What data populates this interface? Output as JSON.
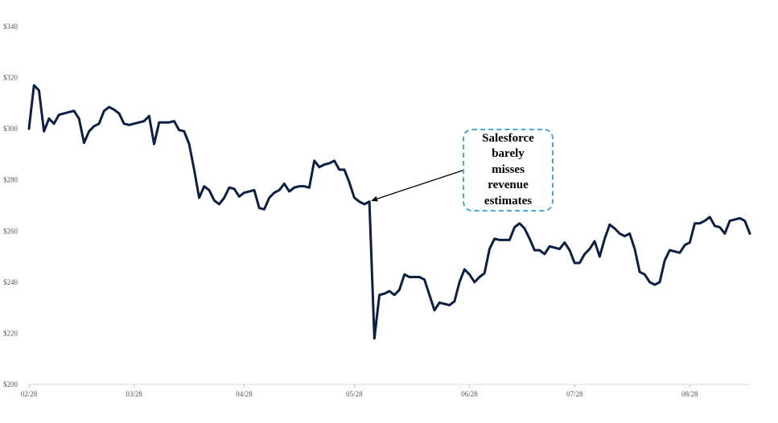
{
  "chart_data": {
    "type": "line",
    "title": "",
    "xlabel": "",
    "ylabel": "",
    "ylim": [
      200,
      340
    ],
    "y_ticks": [
      {
        "value": 200,
        "label": "$200"
      },
      {
        "value": 220,
        "label": "$220"
      },
      {
        "value": 240,
        "label": "$240"
      },
      {
        "value": 260,
        "label": "$260"
      },
      {
        "value": 280,
        "label": "$280"
      },
      {
        "value": 300,
        "label": "$300"
      },
      {
        "value": 320,
        "label": "$320"
      },
      {
        "value": 340,
        "label": "$340"
      }
    ],
    "x_ticks": [
      {
        "index": 0,
        "label": "02/28"
      },
      {
        "index": 21,
        "label": "03/28"
      },
      {
        "index": 43,
        "label": "04/28"
      },
      {
        "index": 65,
        "label": "05/28"
      },
      {
        "index": 88,
        "label": "06/28"
      },
      {
        "index": 109,
        "label": "07/28"
      },
      {
        "index": 132,
        "label": "08/28"
      }
    ],
    "grid": false,
    "line_color": "#0c1f44",
    "series": [
      {
        "values": [
          300,
          317,
          315,
          299,
          304,
          302,
          305.5,
          306,
          306.5,
          307,
          304,
          294.5,
          299,
          301,
          302,
          307,
          308.5,
          307.5,
          306,
          302,
          301.5,
          302,
          302.5,
          303,
          305,
          294,
          302.5,
          302.5,
          302.5,
          303,
          299.5,
          299,
          294,
          284,
          273,
          277.5,
          276,
          272,
          270.5,
          273,
          277,
          276.5,
          273.5,
          275,
          275.5,
          276,
          269,
          268.5,
          273,
          275,
          276,
          278.5,
          275.5,
          277,
          277.5,
          277.5,
          277,
          287.5,
          285,
          286,
          286.5,
          287.5,
          284,
          284,
          279,
          273,
          271.5,
          270.5,
          271.5,
          218,
          235,
          235.5,
          236.5,
          235,
          237,
          243,
          242,
          242,
          242,
          241,
          235,
          229,
          232,
          231.5,
          231,
          232.5,
          240,
          245,
          243,
          240,
          242,
          243.5,
          253,
          257,
          256.5,
          256.5,
          256.5,
          261.5,
          263,
          261,
          257,
          252.5,
          252.5,
          251,
          254,
          253.5,
          253,
          255.5,
          252.5,
          247.5,
          247.5,
          251,
          253,
          256,
          250,
          257,
          262.5,
          261,
          259,
          258,
          259,
          253,
          244,
          243,
          240,
          239,
          240,
          248.5,
          252.5,
          252,
          251.5,
          254.5,
          255.5,
          263,
          263,
          264,
          265.5,
          262,
          261.5,
          259,
          264,
          264.5,
          265,
          264,
          259
        ]
      }
    ],
    "annotation": {
      "text": "Salesforce\nbarely\nmisses\nrevenue\nestimates",
      "point_index": 68,
      "point_value": 271.5
    }
  }
}
